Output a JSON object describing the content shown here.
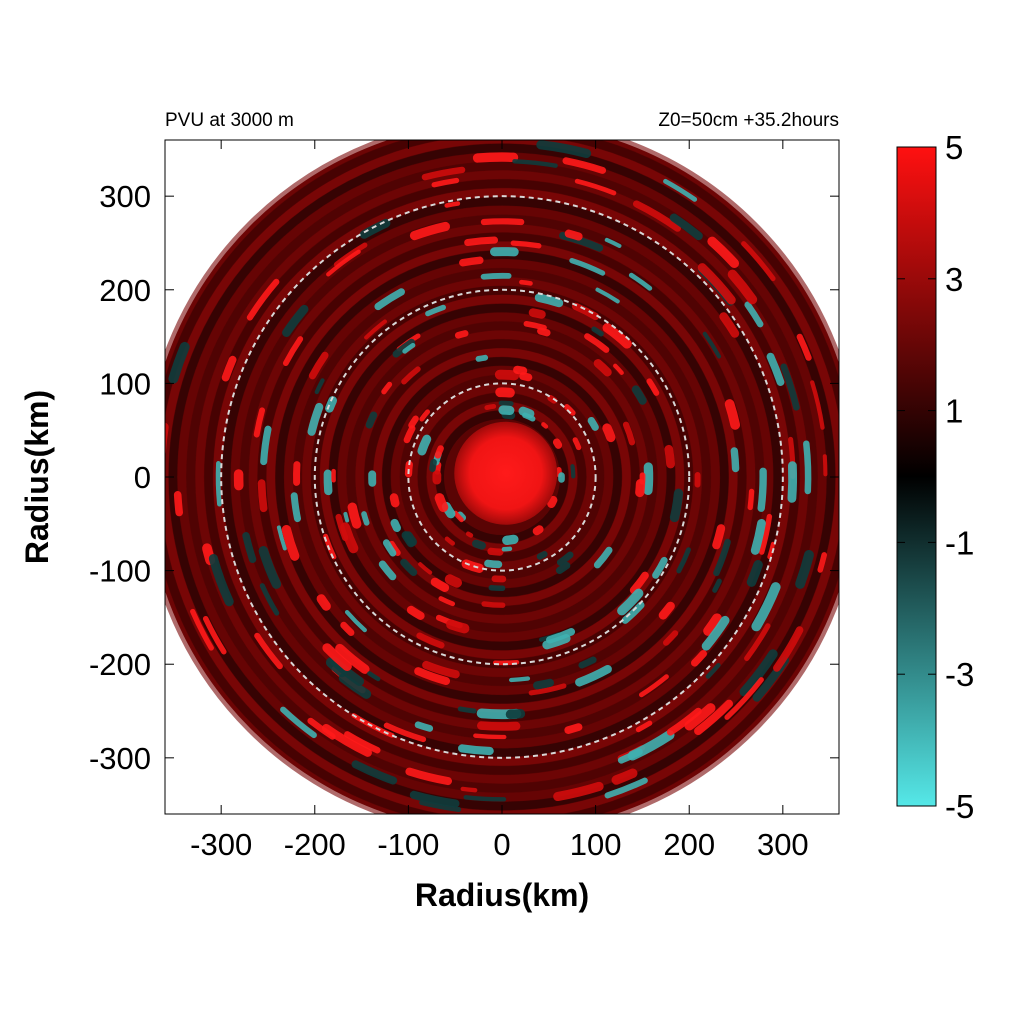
{
  "chart_data": {
    "type": "heatmap",
    "title_left": "PVU at  3000 m",
    "title_right": "Z0=50cm  +35.2hours",
    "xlabel": "Radius(km)",
    "ylabel": "Radius(km)",
    "xlim": [
      -360,
      360
    ],
    "ylim": [
      -360,
      360
    ],
    "x_ticks": [
      -300,
      -200,
      -100,
      0,
      100,
      200,
      300
    ],
    "y_ticks": [
      300,
      200,
      100,
      0,
      -100,
      -200,
      -300
    ],
    "domain_radius": 380,
    "reference_circles_km": [
      100,
      200,
      300
    ],
    "reference_circle_style": "dashed",
    "colorbar": {
      "range": [
        -5,
        5
      ],
      "tick_values": [
        5,
        3,
        1,
        -1,
        -3,
        -5
      ],
      "colors": {
        "min": "#55e8e8",
        "mid": "#000000",
        "max": "#ff1010"
      }
    },
    "field_description_values": {
      "core_radius_km": 55,
      "core_value": 5
    }
  }
}
